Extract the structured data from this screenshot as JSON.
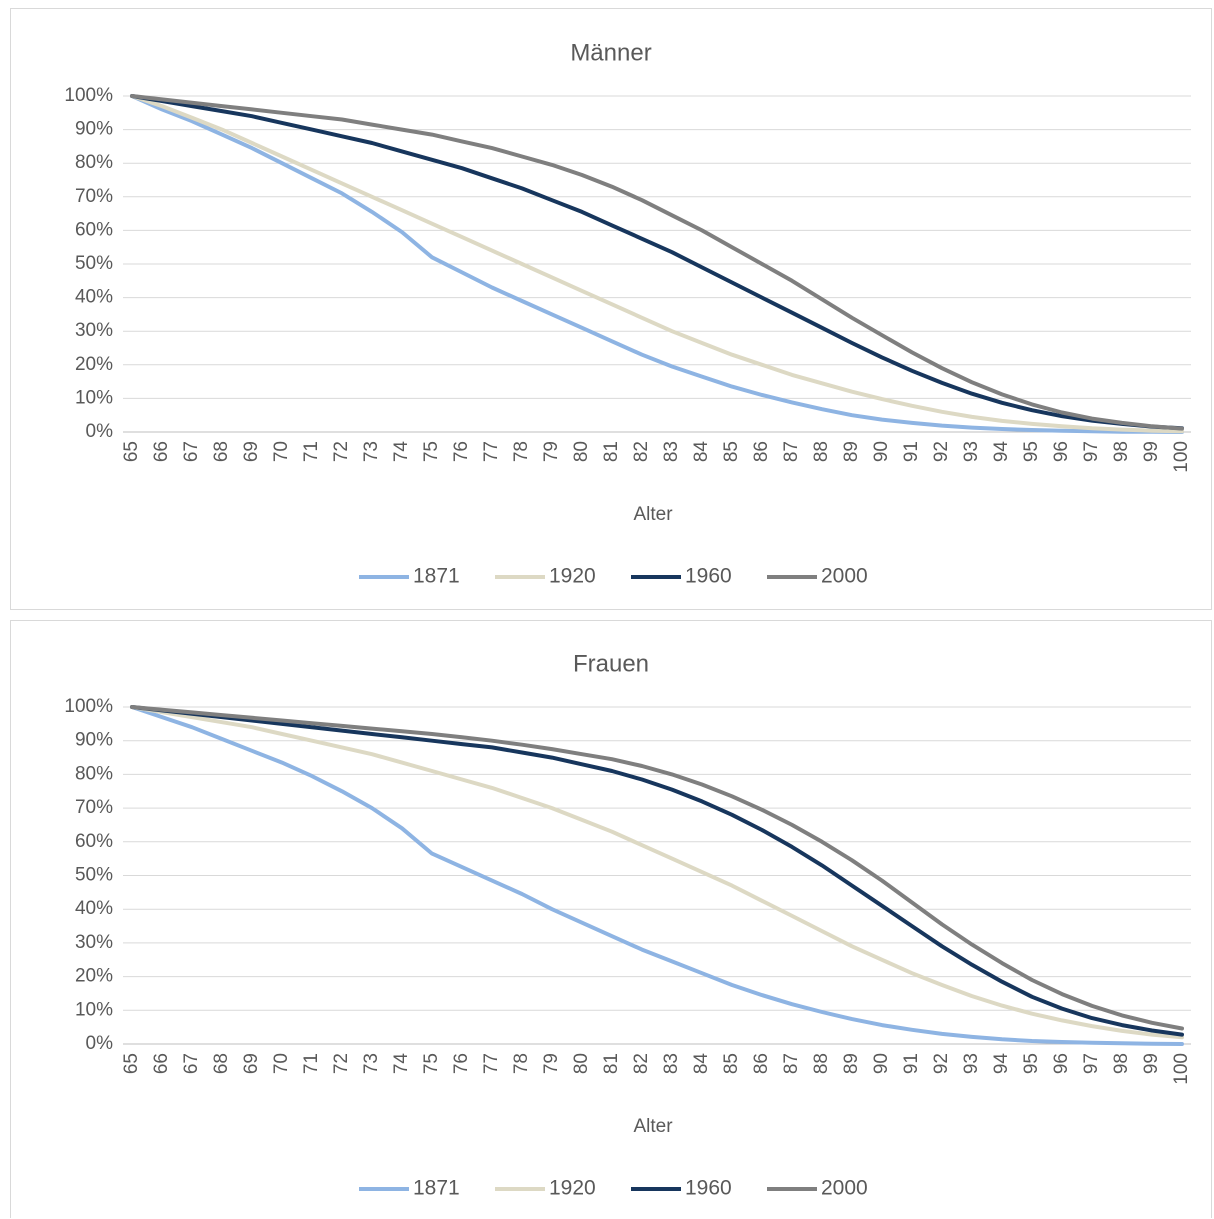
{
  "chart_data": [
    {
      "type": "line",
      "title": "Männer",
      "xlabel": "Alter",
      "ylabel": "",
      "ylim": [
        0,
        1
      ],
      "y_tick_labels": [
        "0%",
        "10%",
        "20%",
        "30%",
        "40%",
        "50%",
        "60%",
        "70%",
        "80%",
        "90%",
        "100%"
      ],
      "x": [
        65,
        66,
        67,
        68,
        69,
        70,
        71,
        72,
        73,
        74,
        75,
        76,
        77,
        78,
        79,
        80,
        81,
        82,
        83,
        84,
        85,
        86,
        87,
        88,
        89,
        90,
        91,
        92,
        93,
        94,
        95,
        96,
        97,
        98,
        99,
        100
      ],
      "grid": true,
      "legend_position": "bottom",
      "series": [
        {
          "name": "1871",
          "color": "#8eb4e3",
          "values": [
            1.0,
            0.96,
            0.925,
            0.885,
            0.845,
            0.8,
            0.755,
            0.71,
            0.655,
            0.595,
            0.52,
            0.475,
            0.43,
            0.39,
            0.35,
            0.31,
            0.27,
            0.23,
            0.195,
            0.165,
            0.135,
            0.11,
            0.088,
            0.068,
            0.05,
            0.037,
            0.027,
            0.019,
            0.013,
            0.009,
            0.006,
            0.004,
            0.002,
            0.001,
            0.001,
            0.0
          ]
        },
        {
          "name": "1920",
          "color": "#ddd9c4",
          "values": [
            1.0,
            0.97,
            0.935,
            0.9,
            0.86,
            0.82,
            0.78,
            0.74,
            0.7,
            0.66,
            0.62,
            0.58,
            0.54,
            0.5,
            0.46,
            0.42,
            0.38,
            0.34,
            0.3,
            0.265,
            0.23,
            0.2,
            0.17,
            0.145,
            0.12,
            0.098,
            0.078,
            0.06,
            0.045,
            0.033,
            0.024,
            0.017,
            0.011,
            0.007,
            0.004,
            0.002
          ]
        },
        {
          "name": "1960",
          "color": "#17365d",
          "values": [
            1.0,
            0.985,
            0.97,
            0.955,
            0.94,
            0.92,
            0.9,
            0.88,
            0.86,
            0.835,
            0.81,
            0.785,
            0.755,
            0.725,
            0.69,
            0.655,
            0.615,
            0.575,
            0.535,
            0.49,
            0.445,
            0.4,
            0.355,
            0.31,
            0.265,
            0.222,
            0.182,
            0.146,
            0.114,
            0.087,
            0.065,
            0.047,
            0.034,
            0.024,
            0.016,
            0.011
          ]
        },
        {
          "name": "2000",
          "color": "#7f7f7f",
          "values": [
            1.0,
            0.99,
            0.98,
            0.97,
            0.96,
            0.95,
            0.94,
            0.93,
            0.915,
            0.9,
            0.885,
            0.865,
            0.845,
            0.82,
            0.795,
            0.765,
            0.73,
            0.69,
            0.645,
            0.6,
            0.55,
            0.5,
            0.45,
            0.395,
            0.34,
            0.288,
            0.237,
            0.19,
            0.148,
            0.112,
            0.082,
            0.058,
            0.04,
            0.027,
            0.017,
            0.01
          ]
        }
      ]
    },
    {
      "type": "line",
      "title": "Frauen",
      "xlabel": "Alter",
      "ylabel": "",
      "ylim": [
        0,
        1
      ],
      "y_tick_labels": [
        "0%",
        "10%",
        "20%",
        "30%",
        "40%",
        "50%",
        "60%",
        "70%",
        "80%",
        "90%",
        "100%"
      ],
      "x": [
        65,
        66,
        67,
        68,
        69,
        70,
        71,
        72,
        73,
        74,
        75,
        76,
        77,
        78,
        79,
        80,
        81,
        82,
        83,
        84,
        85,
        86,
        87,
        88,
        89,
        90,
        91,
        92,
        93,
        94,
        95,
        96,
        97,
        98,
        99,
        100
      ],
      "grid": true,
      "legend_position": "bottom",
      "series": [
        {
          "name": "1871",
          "color": "#8eb4e3",
          "values": [
            1.0,
            0.97,
            0.94,
            0.905,
            0.87,
            0.835,
            0.795,
            0.75,
            0.7,
            0.64,
            0.565,
            0.525,
            0.485,
            0.445,
            0.4,
            0.36,
            0.32,
            0.28,
            0.245,
            0.21,
            0.175,
            0.145,
            0.118,
            0.095,
            0.074,
            0.056,
            0.042,
            0.03,
            0.021,
            0.014,
            0.009,
            0.006,
            0.004,
            0.002,
            0.001,
            0.0
          ]
        },
        {
          "name": "1920",
          "color": "#ddd9c4",
          "values": [
            1.0,
            0.985,
            0.97,
            0.955,
            0.94,
            0.92,
            0.9,
            0.88,
            0.86,
            0.835,
            0.81,
            0.785,
            0.76,
            0.73,
            0.7,
            0.665,
            0.63,
            0.59,
            0.55,
            0.51,
            0.47,
            0.425,
            0.38,
            0.335,
            0.29,
            0.25,
            0.21,
            0.175,
            0.142,
            0.114,
            0.09,
            0.07,
            0.053,
            0.039,
            0.028,
            0.02
          ]
        },
        {
          "name": "1960",
          "color": "#17365d",
          "values": [
            1.0,
            0.99,
            0.98,
            0.97,
            0.96,
            0.95,
            0.94,
            0.93,
            0.92,
            0.91,
            0.9,
            0.89,
            0.88,
            0.865,
            0.85,
            0.83,
            0.81,
            0.785,
            0.755,
            0.72,
            0.68,
            0.635,
            0.585,
            0.53,
            0.47,
            0.41,
            0.35,
            0.29,
            0.235,
            0.185,
            0.14,
            0.105,
            0.077,
            0.056,
            0.04,
            0.028
          ]
        },
        {
          "name": "2000",
          "color": "#7f7f7f",
          "values": [
            1.0,
            0.992,
            0.984,
            0.976,
            0.968,
            0.96,
            0.952,
            0.944,
            0.936,
            0.928,
            0.92,
            0.91,
            0.9,
            0.888,
            0.875,
            0.86,
            0.845,
            0.825,
            0.8,
            0.77,
            0.735,
            0.695,
            0.65,
            0.6,
            0.545,
            0.485,
            0.42,
            0.355,
            0.295,
            0.24,
            0.19,
            0.148,
            0.113,
            0.085,
            0.063,
            0.046
          ]
        }
      ]
    }
  ]
}
